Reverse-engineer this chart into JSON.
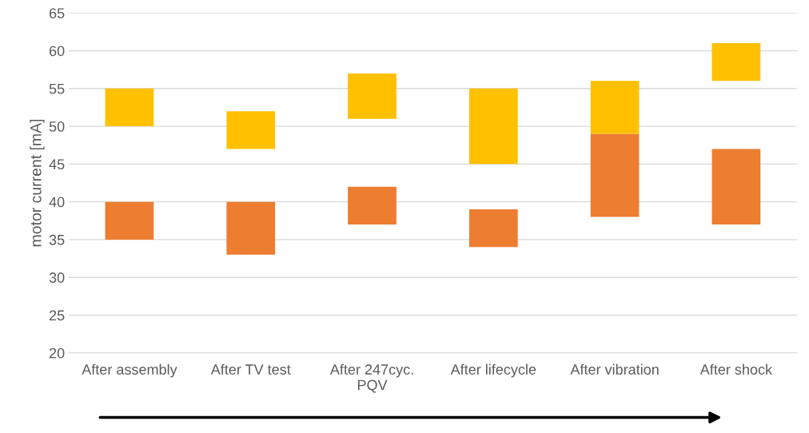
{
  "chart_data": {
    "type": "bar",
    "ylabel": "motor current [mA]",
    "categories": [
      "After assembly",
      "After TV test",
      "After 247cyc.\nPQV",
      "After lifecycle",
      "After vibration",
      "After shock"
    ],
    "series": [
      {
        "color": "#ed7d31",
        "base": [
          35,
          33,
          37,
          34,
          38,
          37
        ],
        "values": [
          5,
          7,
          5,
          5,
          11,
          10
        ]
      },
      {
        "color": "#ffc000",
        "base": [
          50,
          47,
          51,
          45,
          49,
          56
        ],
        "values": [
          5,
          5,
          6,
          10,
          7,
          5
        ]
      }
    ],
    "ylim": [
      20,
      65
    ],
    "yticks": [
      20,
      25,
      30,
      35,
      40,
      45,
      50,
      55,
      60,
      65
    ],
    "grid": "y",
    "legend": false
  }
}
